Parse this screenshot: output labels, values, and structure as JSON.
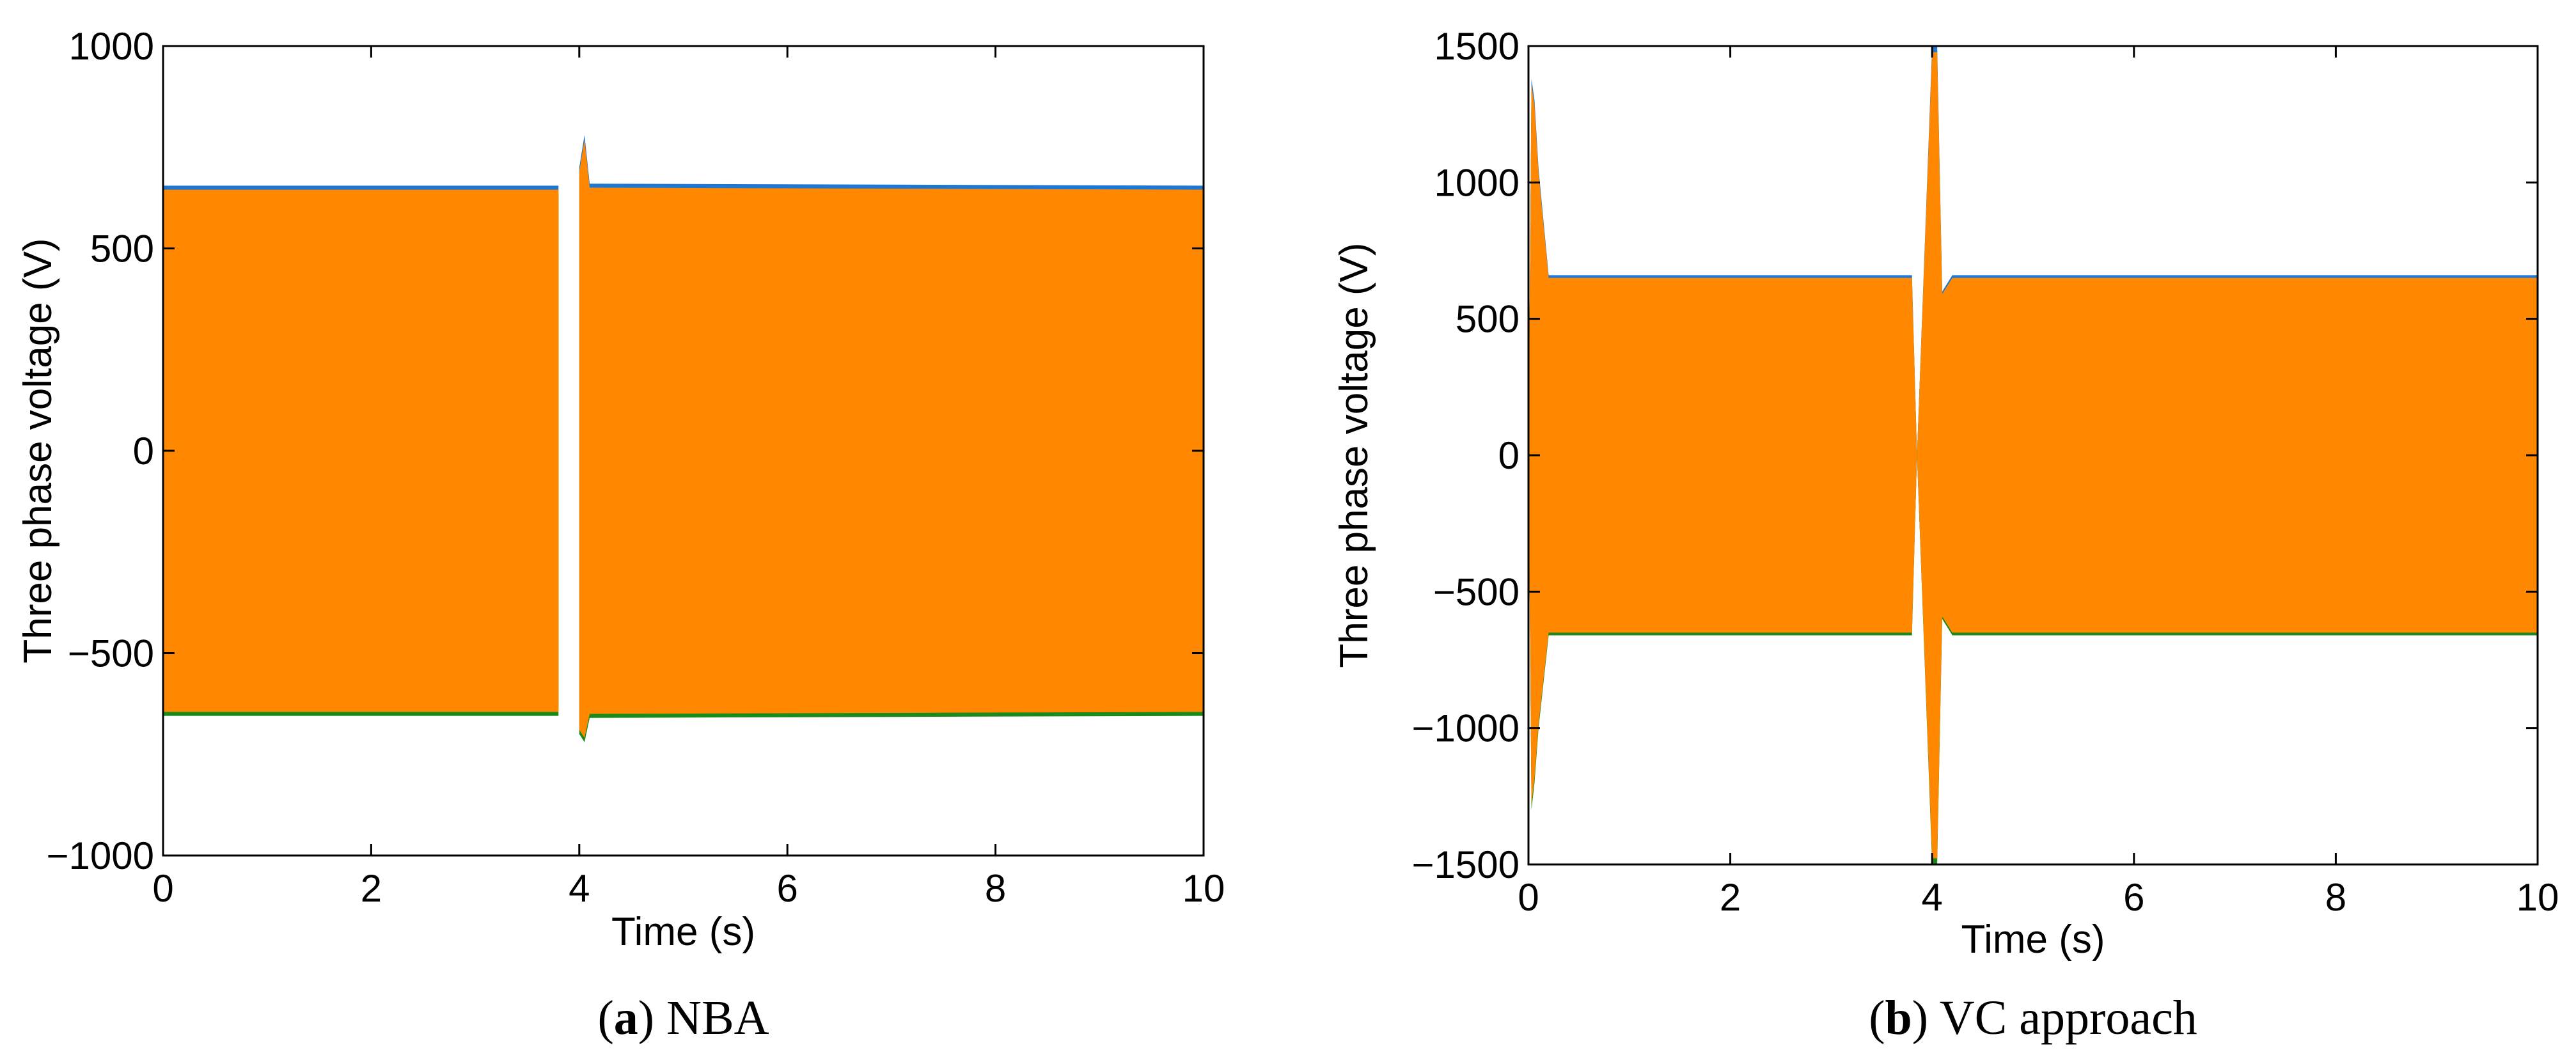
{
  "chart_data": [
    {
      "type": "line",
      "caption": {
        "letter": "a",
        "text": "NBA"
      },
      "xlabel": "Time (s)",
      "ylabel": "Three phase voltage (V)",
      "xlim": [
        0,
        10
      ],
      "ylim": [
        -1000,
        1000
      ],
      "xticks": [
        "0",
        "2",
        "4",
        "6",
        "8",
        "10"
      ],
      "yticks": [
        "1000",
        "500",
        "0",
        "−500",
        "−1000"
      ],
      "grid": false,
      "colors": {
        "phase_a": "#1f77d4",
        "phase_b": "#1a8a1a",
        "phase_c": "#ff8800"
      },
      "series": [
        {
          "x": [
            0,
            3.8,
            3.8,
            4.0,
            4.0,
            4.05,
            4.1,
            10
          ],
          "y_upper": [
            655,
            655,
            0,
            0,
            700,
            780,
            660,
            655
          ],
          "y_lower": [
            -655,
            -655,
            0,
            0,
            -700,
            -720,
            -660,
            -655
          ]
        }
      ]
    },
    {
      "type": "line",
      "caption": {
        "letter": "b",
        "text": "VC approach"
      },
      "xlabel": "Time (s)",
      "ylabel": "Three phase voltage (V)",
      "xlim": [
        0,
        10
      ],
      "ylim": [
        -1500,
        1500
      ],
      "xticks": [
        "0",
        "2",
        "4",
        "6",
        "8",
        "10"
      ],
      "yticks": [
        "1500",
        "1000",
        "500",
        "0",
        "−500",
        "−1000",
        "−1500"
      ],
      "grid": false,
      "colors": {
        "phase_a": "#1f77d4",
        "phase_b": "#1a8a1a",
        "phase_c": "#ff8800"
      },
      "series": [
        {
          "x": [
            0,
            0.03,
            0.06,
            0.1,
            0.2,
            3.8,
            3.85,
            4.0,
            4.05,
            4.1,
            4.2,
            10
          ],
          "y_upper": [
            0,
            1380,
            1300,
            1050,
            660,
            660,
            0,
            1500,
            1500,
            600,
            660,
            660
          ],
          "y_lower": [
            0,
            -1300,
            -1200,
            -1000,
            -660,
            -660,
            0,
            -1500,
            -1500,
            -600,
            -660,
            -660
          ]
        }
      ]
    }
  ]
}
